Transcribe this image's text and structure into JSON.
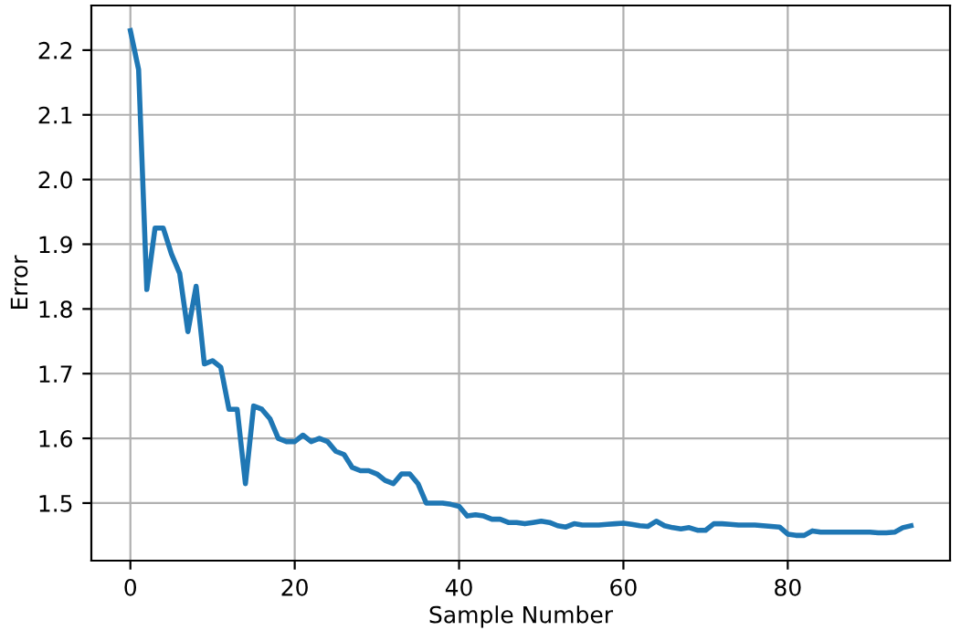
{
  "chart_data": {
    "type": "line",
    "xlabel": "Sample Number",
    "ylabel": "Error",
    "x": [
      0,
      1,
      2,
      3,
      4,
      5,
      6,
      7,
      8,
      9,
      10,
      11,
      12,
      13,
      14,
      15,
      16,
      17,
      18,
      19,
      20,
      21,
      22,
      23,
      24,
      25,
      26,
      27,
      28,
      29,
      30,
      31,
      32,
      33,
      34,
      35,
      36,
      37,
      38,
      39,
      40,
      41,
      42,
      43,
      44,
      45,
      46,
      47,
      48,
      49,
      50,
      51,
      52,
      53,
      54,
      55,
      56,
      57,
      58,
      59,
      60,
      61,
      62,
      63,
      64,
      65,
      66,
      67,
      68,
      69,
      70,
      71,
      72,
      73,
      74,
      75,
      76,
      77,
      78,
      79,
      80,
      81,
      82,
      83,
      84,
      85,
      86,
      87,
      88,
      89,
      90,
      91,
      92,
      93,
      94,
      95
    ],
    "series": [
      {
        "color": "#1f77b4",
        "values": [
          2.23,
          2.17,
          1.83,
          1.925,
          1.925,
          1.885,
          1.855,
          1.765,
          1.835,
          1.715,
          1.72,
          1.71,
          1.645,
          1.645,
          1.53,
          1.65,
          1.645,
          1.63,
          1.6,
          1.595,
          1.595,
          1.605,
          1.595,
          1.6,
          1.595,
          1.58,
          1.575,
          1.555,
          1.55,
          1.55,
          1.545,
          1.535,
          1.53,
          1.545,
          1.545,
          1.53,
          1.5,
          1.5,
          1.5,
          1.498,
          1.495,
          1.48,
          1.482,
          1.48,
          1.475,
          1.475,
          1.47,
          1.47,
          1.468,
          1.47,
          1.472,
          1.47,
          1.465,
          1.463,
          1.468,
          1.466,
          1.466,
          1.466,
          1.467,
          1.468,
          1.469,
          1.467,
          1.465,
          1.464,
          1.472,
          1.465,
          1.462,
          1.46,
          1.462,
          1.458,
          1.458,
          1.468,
          1.468,
          1.467,
          1.466,
          1.466,
          1.466,
          1.465,
          1.464,
          1.463,
          1.452,
          1.45,
          1.45,
          1.457,
          1.455,
          1.455,
          1.455,
          1.455,
          1.455,
          1.455,
          1.455,
          1.454,
          1.454,
          1.455,
          1.462,
          1.465
        ]
      }
    ],
    "xlim": [
      -4.75,
      99.75
    ],
    "ylim": [
      1.411,
      2.269
    ],
    "xticks": [
      0,
      20,
      40,
      60,
      80
    ],
    "yticks": [
      1.5,
      1.6,
      1.7,
      1.8,
      1.9,
      {
        "value": 2,
        "label": "2.0"
      },
      2.1,
      2.2
    ],
    "grid": true,
    "marker": "none",
    "line_style": "solid",
    "legend": false
  }
}
